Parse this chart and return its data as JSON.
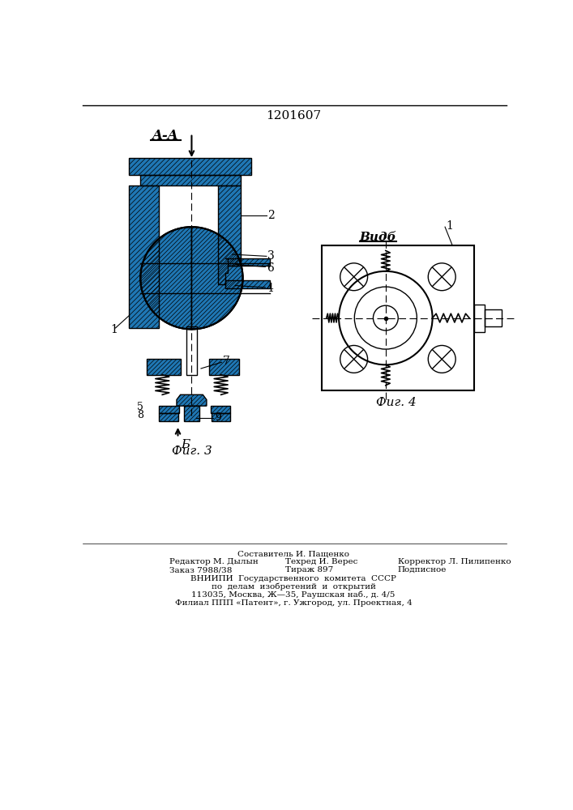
{
  "patent_number": "1201607",
  "bg_color": "#ffffff",
  "fig3_label": "Фиг. 3",
  "fig4_label": "Фиг. 4",
  "view_label_aa": "A-A",
  "view_label_b": "Видб",
  "arrow_b_label": "Б",
  "footer_lines": [
    "Составитель И. Пащенко",
    "Редактор М. Дылын",
    "Техред И. Верес",
    "Корректор Л. Пилипенко",
    "Заказ 7988/38",
    "Тираж 897",
    "Подписное",
    "ВНИИПИ  Государственного  комитета  СССР",
    "по  делам  изобретений  и  открытий",
    "113035, Москва, Ж—35, Раушская наб., д. 4/5",
    "Филиал ППП «Патент», г. Ужгород, ул. Проектная, 4"
  ]
}
